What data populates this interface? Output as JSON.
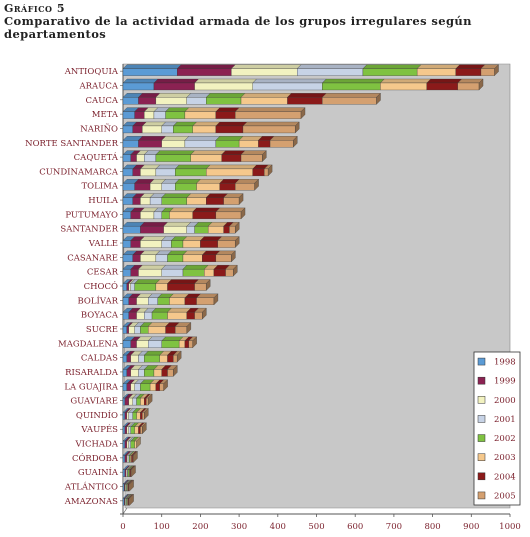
{
  "header": {
    "figure_label": "Gráfico 5",
    "title": "Comparativo de la actividad armada de los grupos irregulares según departamentos"
  },
  "chart_data": {
    "type": "bar",
    "orientation": "horizontal",
    "stacked": true,
    "three_d": true,
    "categories": [
      "ANTIOQUIA",
      "ARAUCA",
      "CAUCA",
      "META",
      "NARIÑO",
      "NORTE SANTANDER",
      "CAQUETÁ",
      "CUNDINAMARCA",
      "TOLIMA",
      "HUILA",
      "PUTUMAYO",
      "SANTANDER",
      "VALLE",
      "CASANARE",
      "CESAR",
      "CHOCÓ",
      "BOLÍVAR",
      "BOYACA",
      "SUCRE",
      "MAGDALENA",
      "CALDAS",
      "RISARALDA",
      "LA GUAJIRA",
      "GUAVIARE",
      "QUINDÍO",
      "VAUPÉS",
      "VICHADA",
      "CÓRDOBA",
      "GUAINÍA",
      "ATLÁNTICO",
      "AMAZONAS"
    ],
    "series": [
      {
        "name": "1998",
        "color": "#5b9bd5",
        "values": [
          140,
          80,
          40,
          30,
          25,
          40,
          20,
          25,
          30,
          25,
          20,
          45,
          20,
          25,
          20,
          10,
          15,
          15,
          10,
          20,
          10,
          10,
          10,
          5,
          5,
          5,
          5,
          5,
          5,
          3,
          3
        ]
      },
      {
        "name": "1999",
        "color": "#8b2252",
        "values": [
          140,
          105,
          45,
          25,
          25,
          60,
          15,
          20,
          40,
          20,
          25,
          60,
          25,
          20,
          20,
          5,
          20,
          20,
          5,
          15,
          10,
          10,
          10,
          10,
          5,
          5,
          5,
          5,
          3,
          2,
          2
        ]
      },
      {
        "name": "2000",
        "color": "#f2f2c0",
        "values": [
          170,
          150,
          80,
          25,
          50,
          60,
          20,
          40,
          30,
          25,
          35,
          60,
          55,
          40,
          60,
          5,
          30,
          20,
          15,
          30,
          20,
          20,
          10,
          10,
          5,
          5,
          5,
          3,
          3,
          2,
          2
        ]
      },
      {
        "name": "2001",
        "color": "#c7d3e6",
        "values": [
          170,
          180,
          50,
          30,
          30,
          80,
          30,
          50,
          35,
          30,
          20,
          20,
          25,
          30,
          55,
          10,
          25,
          20,
          15,
          35,
          15,
          15,
          15,
          10,
          10,
          5,
          5,
          3,
          2,
          2,
          2
        ]
      },
      {
        "name": "2002",
        "color": "#7fc241",
        "values": [
          140,
          150,
          90,
          50,
          50,
          60,
          90,
          80,
          55,
          65,
          20,
          35,
          30,
          40,
          55,
          55,
          30,
          40,
          20,
          45,
          40,
          25,
          25,
          10,
          10,
          10,
          10,
          3,
          3,
          2,
          2
        ]
      },
      {
        "name": "2003",
        "color": "#f5c88c",
        "values": [
          100,
          120,
          120,
          80,
          60,
          50,
          80,
          120,
          60,
          50,
          60,
          40,
          45,
          50,
          25,
          30,
          40,
          50,
          45,
          15,
          20,
          20,
          15,
          10,
          10,
          10,
          5,
          3,
          2,
          2,
          2
        ]
      },
      {
        "name": "2004",
        "color": "#8b1a1a",
        "values": [
          65,
          80,
          90,
          50,
          70,
          30,
          50,
          30,
          40,
          45,
          60,
          15,
          45,
          35,
          30,
          70,
          30,
          20,
          25,
          10,
          15,
          15,
          10,
          5,
          5,
          5,
          0,
          3,
          2,
          2,
          2
        ]
      },
      {
        "name": "2005",
        "color": "#d4a070",
        "values": [
          35,
          55,
          140,
          170,
          135,
          60,
          55,
          10,
          50,
          40,
          65,
          15,
          45,
          40,
          20,
          30,
          45,
          20,
          30,
          10,
          10,
          15,
          10,
          5,
          5,
          5,
          0,
          2,
          2,
          2,
          2
        ]
      }
    ],
    "xlim": [
      0,
      1000
    ],
    "xticks": [
      "0",
      "100",
      "200",
      "300",
      "400",
      "500",
      "600",
      "700",
      "800",
      "900",
      "1000"
    ],
    "grid": false,
    "legend_position": "bottom-right"
  }
}
